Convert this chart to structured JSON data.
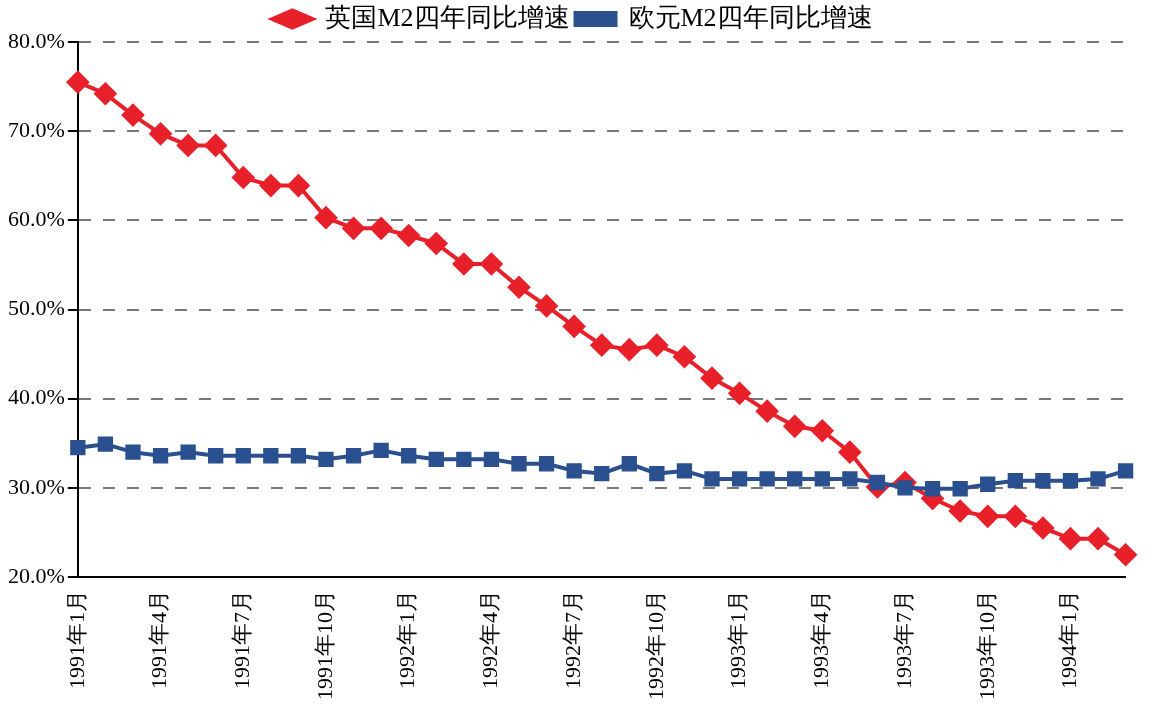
{
  "chart_data": {
    "type": "line",
    "categories": [
      "1991年1月",
      null,
      null,
      "1991年4月",
      null,
      null,
      "1991年7月",
      null,
      null,
      "1991年10月",
      null,
      null,
      "1992年1月",
      null,
      null,
      "1992年4月",
      null,
      null,
      "1992年7月",
      null,
      null,
      "1992年10月",
      null,
      null,
      "1993年1月",
      null,
      null,
      "1993年4月",
      null,
      null,
      "1993年7月",
      null,
      null,
      "1993年10月",
      null,
      null,
      "1994年1月",
      null,
      null
    ],
    "series": [
      {
        "name": "英国M2四年同比增速",
        "color": "#e8202a",
        "marker": "diamond",
        "values": [
          75.5,
          74.2,
          71.8,
          69.7,
          68.4,
          68.4,
          64.8,
          63.9,
          63.9,
          60.3,
          59.1,
          59.1,
          58.3,
          57.4,
          55.1,
          55.1,
          52.5,
          50.4,
          48.1,
          46.0,
          45.5,
          46.0,
          44.7,
          42.3,
          40.6,
          38.6,
          36.9,
          36.4,
          34.0,
          30.1,
          30.6,
          28.8,
          27.4,
          26.8,
          26.8,
          25.5,
          24.3,
          24.3,
          22.5
        ]
      },
      {
        "name": "欧元M2四年同比增速",
        "color": "#2b5090",
        "marker": "square",
        "values": [
          34.5,
          34.9,
          34.0,
          33.6,
          34.0,
          33.6,
          33.6,
          33.6,
          33.6,
          33.2,
          33.6,
          34.2,
          33.6,
          33.2,
          33.2,
          33.2,
          32.7,
          32.7,
          31.9,
          31.6,
          32.7,
          31.6,
          31.9,
          31.0,
          31.0,
          31.0,
          31.0,
          31.0,
          31.0,
          30.6,
          30.0,
          29.9,
          29.9,
          30.4,
          30.8,
          30.8,
          30.8,
          31.0,
          31.9
        ]
      }
    ],
    "ylim": [
      20,
      80
    ],
    "yticks": [
      {
        "value": 20,
        "label": "20.0%"
      },
      {
        "value": 30,
        "label": "30.0%"
      },
      {
        "value": 40,
        "label": "40.0%"
      },
      {
        "value": 50,
        "label": "50.0%"
      },
      {
        "value": 60,
        "label": "60.0%"
      },
      {
        "value": 70,
        "label": "70.0%"
      },
      {
        "value": 80,
        "label": "80.0%"
      }
    ],
    "grid": "y",
    "legend": "top",
    "line_style": "solid"
  }
}
